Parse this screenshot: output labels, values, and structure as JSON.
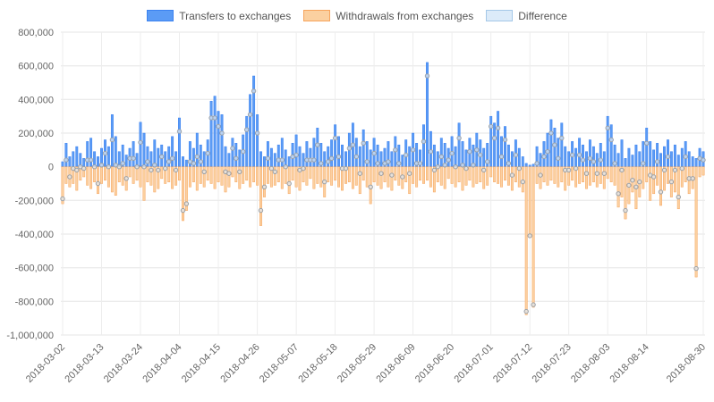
{
  "legend": {
    "position": "top"
  },
  "chart_data": {
    "type": "bar",
    "title": "",
    "grid": true,
    "legend_position": "top",
    "ylim": [
      -1000000,
      800000
    ],
    "y_ticks": [
      800000,
      600000,
      400000,
      200000,
      0,
      -200000,
      -400000,
      -600000,
      -800000,
      -1000000
    ],
    "x_start_date": "2018-03-02",
    "x_end_date": "2018-08-30",
    "n_points": 182,
    "x_ticks": [
      {
        "label": "2018-03-02",
        "index": 0
      },
      {
        "label": "2018-03-13",
        "index": 11
      },
      {
        "label": "2018-03-24",
        "index": 22
      },
      {
        "label": "2018-04-04",
        "index": 33
      },
      {
        "label": "2018-04-15",
        "index": 44
      },
      {
        "label": "2018-04-26",
        "index": 55
      },
      {
        "label": "2018-05-07",
        "index": 66
      },
      {
        "label": "2018-05-18",
        "index": 77
      },
      {
        "label": "2018-05-29",
        "index": 88
      },
      {
        "label": "2018-06-09",
        "index": 99
      },
      {
        "label": "2018-06-20",
        "index": 110
      },
      {
        "label": "2018-07-01",
        "index": 121
      },
      {
        "label": "2018-07-12",
        "index": 132
      },
      {
        "label": "2018-07-23",
        "index": 143
      },
      {
        "label": "2018-08-03",
        "index": 154
      },
      {
        "label": "2018-08-14",
        "index": 165
      },
      {
        "label": "2018-08-30",
        "index": 181
      }
    ],
    "series": [
      {
        "name": "Transfers to exchanges",
        "type": "bar",
        "fill": "#5b9bf5",
        "border": "#3b82f0",
        "values": [
          30000,
          140000,
          60000,
          90000,
          120000,
          80000,
          50000,
          150000,
          170000,
          90000,
          60000,
          110000,
          160000,
          120000,
          310000,
          180000,
          90000,
          130000,
          70000,
          110000,
          150000,
          80000,
          265000,
          200000,
          120000,
          90000,
          160000,
          110000,
          130000,
          90000,
          120000,
          180000,
          90000,
          290000,
          60000,
          40000,
          150000,
          110000,
          200000,
          130000,
          90000,
          160000,
          390000,
          420000,
          330000,
          310000,
          120000,
          80000,
          170000,
          140000,
          100000,
          190000,
          300000,
          430000,
          540000,
          310000,
          90000,
          60000,
          150000,
          110000,
          80000,
          130000,
          170000,
          100000,
          60000,
          140000,
          190000,
          120000,
          80000,
          150000,
          110000,
          170000,
          230000,
          140000,
          90000,
          120000,
          160000,
          250000,
          180000,
          130000,
          90000,
          200000,
          260000,
          170000,
          120000,
          220000,
          150000,
          100000,
          170000,
          130000,
          90000,
          110000,
          150000,
          90000,
          180000,
          130000,
          70000,
          160000,
          120000,
          200000,
          140000,
          100000,
          250000,
          620000,
          210000,
          130000,
          90000,
          170000,
          140000,
          110000,
          180000,
          120000,
          260000,
          150000,
          100000,
          170000,
          130000,
          200000,
          160000,
          110000,
          140000,
          300000,
          260000,
          330000,
          180000,
          240000,
          130000,
          90000,
          160000,
          110000,
          60000,
          20000,
          10000,
          15000,
          120000,
          80000,
          150000,
          200000,
          280000,
          230000,
          170000,
          260000,
          120000,
          90000,
          150000,
          110000,
          170000,
          130000,
          90000,
          160000,
          120000,
          80000,
          140000,
          90000,
          300000,
          250000,
          130000,
          80000,
          160000,
          50000,
          110000,
          70000,
          130000,
          90000,
          150000,
          230000,
          150000,
          100000,
          140000,
          80000,
          120000,
          160000,
          90000,
          130000,
          70000,
          110000,
          150000,
          90000,
          60000,
          50000,
          110000,
          90000
        ]
      },
      {
        "name": "Withdrawals from exchanges",
        "type": "bar",
        "fill": "#fbd0a0",
        "border": "#f7a45c",
        "values": [
          -220000,
          -100000,
          -120000,
          -100000,
          -140000,
          -80000,
          -60000,
          -110000,
          -130000,
          -90000,
          -160000,
          -100000,
          -80000,
          -120000,
          -150000,
          -170000,
          -90000,
          -110000,
          -140000,
          -60000,
          -100000,
          -80000,
          -120000,
          -200000,
          -90000,
          -110000,
          -150000,
          -130000,
          -70000,
          -100000,
          -90000,
          -130000,
          -110000,
          -80000,
          -320000,
          -260000,
          -120000,
          -90000,
          -140000,
          -100000,
          -120000,
          -80000,
          -100000,
          -130000,
          -90000,
          -110000,
          -150000,
          -120000,
          -60000,
          -90000,
          -130000,
          -100000,
          -80000,
          -120000,
          -90000,
          -110000,
          -350000,
          -180000,
          -100000,
          -120000,
          -110000,
          -90000,
          -130000,
          -100000,
          -160000,
          -80000,
          -120000,
          -140000,
          -90000,
          -110000,
          -70000,
          -130000,
          -100000,
          -120000,
          -180000,
          -90000,
          -110000,
          -80000,
          -120000,
          -140000,
          -100000,
          -90000,
          -130000,
          -110000,
          -160000,
          -80000,
          -120000,
          -220000,
          -90000,
          -110000,
          -130000,
          -90000,
          -120000,
          -140000,
          -80000,
          -110000,
          -130000,
          -90000,
          -160000,
          -100000,
          -120000,
          -80000,
          -100000,
          -80000,
          -120000,
          -150000,
          -90000,
          -110000,
          -130000,
          -70000,
          -100000,
          -120000,
          -90000,
          -140000,
          -110000,
          -80000,
          -120000,
          -100000,
          -90000,
          -130000,
          -110000,
          -60000,
          -90000,
          -100000,
          -120000,
          -80000,
          -110000,
          -140000,
          -90000,
          -120000,
          -150000,
          -880000,
          -420000,
          -835000,
          -100000,
          -130000,
          -90000,
          -110000,
          -80000,
          -100000,
          -120000,
          -90000,
          -140000,
          -110000,
          -80000,
          -120000,
          -100000,
          -90000,
          -130000,
          -110000,
          -90000,
          -120000,
          -100000,
          -130000,
          -70000,
          -90000,
          -110000,
          -240000,
          -180000,
          -310000,
          -220000,
          -150000,
          -250000,
          -180000,
          -130000,
          -90000,
          -200000,
          -160000,
          -110000,
          -230000,
          -140000,
          -100000,
          -180000,
          -150000,
          -250000,
          -120000,
          -90000,
          -160000,
          -130000,
          -655000,
          -60000,
          -50000
        ]
      },
      {
        "name": "Difference",
        "type": "scatter",
        "fill": "#dcebf9",
        "border": "#a5c8e8",
        "point_stroke": "#9aa0a6",
        "point_fill": "rgba(224,234,244,0.7)",
        "values": [
          -190000,
          40000,
          -60000,
          -10000,
          -20000,
          0,
          -10000,
          40000,
          40000,
          0,
          -100000,
          10000,
          80000,
          0,
          160000,
          10000,
          0,
          20000,
          -70000,
          50000,
          50000,
          0,
          145000,
          0,
          30000,
          -20000,
          10000,
          -20000,
          60000,
          -10000,
          30000,
          50000,
          -20000,
          210000,
          -260000,
          -220000,
          30000,
          20000,
          60000,
          30000,
          -30000,
          80000,
          290000,
          290000,
          240000,
          200000,
          -30000,
          -40000,
          110000,
          50000,
          -30000,
          90000,
          220000,
          310000,
          450000,
          200000,
          -260000,
          -120000,
          50000,
          -10000,
          -30000,
          40000,
          40000,
          0,
          -100000,
          60000,
          70000,
          -20000,
          -10000,
          40000,
          40000,
          40000,
          130000,
          20000,
          -90000,
          30000,
          50000,
          170000,
          60000,
          -10000,
          -10000,
          110000,
          130000,
          60000,
          -40000,
          140000,
          30000,
          -120000,
          80000,
          20000,
          -40000,
          20000,
          30000,
          -50000,
          100000,
          20000,
          -60000,
          70000,
          -40000,
          100000,
          20000,
          20000,
          150000,
          540000,
          90000,
          -20000,
          0,
          60000,
          10000,
          40000,
          80000,
          0,
          170000,
          10000,
          -10000,
          90000,
          10000,
          100000,
          70000,
          -20000,
          30000,
          240000,
          170000,
          230000,
          60000,
          160000,
          20000,
          -50000,
          70000,
          -10000,
          -90000,
          -860000,
          -410000,
          -820000,
          20000,
          -50000,
          60000,
          90000,
          200000,
          130000,
          50000,
          170000,
          -20000,
          -20000,
          70000,
          -10000,
          70000,
          40000,
          -40000,
          50000,
          30000,
          -40000,
          40000,
          -40000,
          230000,
          160000,
          20000,
          -160000,
          -20000,
          -260000,
          -110000,
          -80000,
          -120000,
          -90000,
          20000,
          140000,
          -50000,
          -60000,
          30000,
          -150000,
          -20000,
          60000,
          -90000,
          -20000,
          -180000,
          -10000,
          60000,
          -70000,
          -70000,
          -605000,
          50000,
          40000
        ]
      }
    ]
  }
}
